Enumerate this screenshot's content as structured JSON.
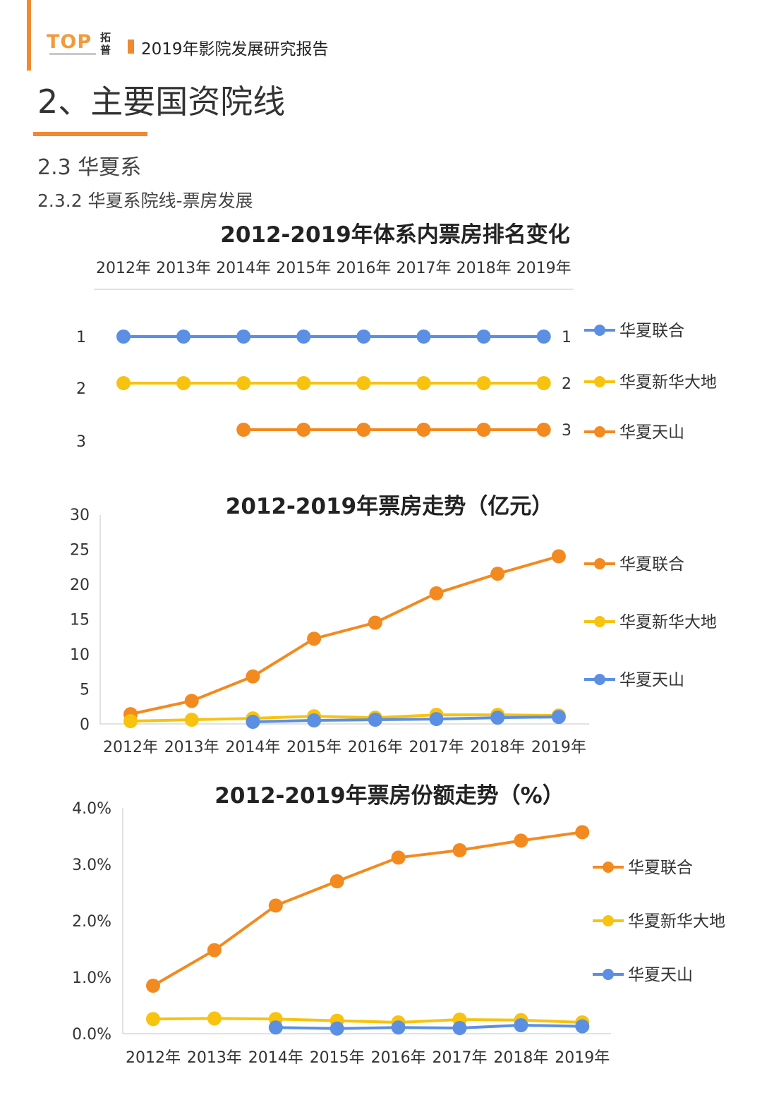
{
  "header": {
    "logo_text": "TOP",
    "logo_cn": "拓普",
    "report_title": "2019年影院发展研究报告"
  },
  "page": {
    "section_title": "2、主要国资院线",
    "subsection": "2.3 华夏系",
    "subsubsection": "2.3.2 华夏系院线-票房发展"
  },
  "colors": {
    "accent": "#f08a32",
    "huaxia_lianhe": "#5b8fe3",
    "huaxia_xinhua": "#f7c30e",
    "huaxia_tianshan": "#f38a1f"
  },
  "chart_data": [
    {
      "type": "line",
      "title": "2012-2019年体系内票房排名变化",
      "categories": [
        "2012年",
        "2013年",
        "2014年",
        "2015年",
        "2016年",
        "2017年",
        "2018年",
        "2019年"
      ],
      "axis_position": "top",
      "y_reversed": true,
      "y_ticks": [
        "1",
        "2",
        "3"
      ],
      "ylim": [
        1,
        3
      ],
      "series": [
        {
          "name": "华夏联合",
          "color": "#5b8fe3",
          "values": [
            1,
            1,
            1,
            1,
            1,
            1,
            1,
            1
          ],
          "end_label": "1"
        },
        {
          "name": "华夏新华大地",
          "color": "#f7c30e",
          "values": [
            2,
            2,
            2,
            2,
            2,
            2,
            2,
            2
          ],
          "end_label": "2"
        },
        {
          "name": "华夏天山",
          "color": "#f38a1f",
          "values": [
            null,
            null,
            3,
            3,
            3,
            3,
            3,
            3
          ],
          "end_label": "3"
        }
      ],
      "legend": "right"
    },
    {
      "type": "line",
      "title": "2012-2019年票房走势（亿元）",
      "categories": [
        "2012年",
        "2013年",
        "2014年",
        "2015年",
        "2016年",
        "2017年",
        "2018年",
        "2019年"
      ],
      "ylim": [
        0,
        30
      ],
      "y_ticks": [
        "0",
        "5",
        "10",
        "15",
        "20",
        "25",
        "30"
      ],
      "series": [
        {
          "name": "华夏联合",
          "color": "#f38a1f",
          "values": [
            1.4,
            3.3,
            6.8,
            12.2,
            14.5,
            18.7,
            21.5,
            24.0
          ]
        },
        {
          "name": "华夏新华大地",
          "color": "#f7c30e",
          "values": [
            0.4,
            0.6,
            0.8,
            1.1,
            0.9,
            1.3,
            1.3,
            1.2
          ]
        },
        {
          "name": "华夏天山",
          "color": "#5b8fe3",
          "values": [
            null,
            null,
            0.3,
            0.5,
            0.6,
            0.7,
            0.9,
            1.0
          ]
        }
      ],
      "legend": "right"
    },
    {
      "type": "line",
      "title": "2012-2019年票房份额走势（%）",
      "categories": [
        "2012年",
        "2013年",
        "2014年",
        "2015年",
        "2016年",
        "2017年",
        "2018年",
        "2019年"
      ],
      "ylim": [
        0,
        4
      ],
      "y_ticks": [
        "0.0%",
        "1.0%",
        "2.0%",
        "3.0%",
        "4.0%"
      ],
      "series": [
        {
          "name": "华夏联合",
          "color": "#f38a1f",
          "values": [
            0.85,
            1.48,
            2.27,
            2.7,
            3.12,
            3.25,
            3.42,
            3.57
          ]
        },
        {
          "name": "华夏新华大地",
          "color": "#f7c30e",
          "values": [
            0.26,
            0.27,
            0.26,
            0.23,
            0.2,
            0.25,
            0.24,
            0.2
          ]
        },
        {
          "name": "华夏天山",
          "color": "#5b8fe3",
          "values": [
            null,
            null,
            0.11,
            0.09,
            0.11,
            0.1,
            0.15,
            0.13
          ]
        }
      ],
      "legend": "right"
    }
  ]
}
